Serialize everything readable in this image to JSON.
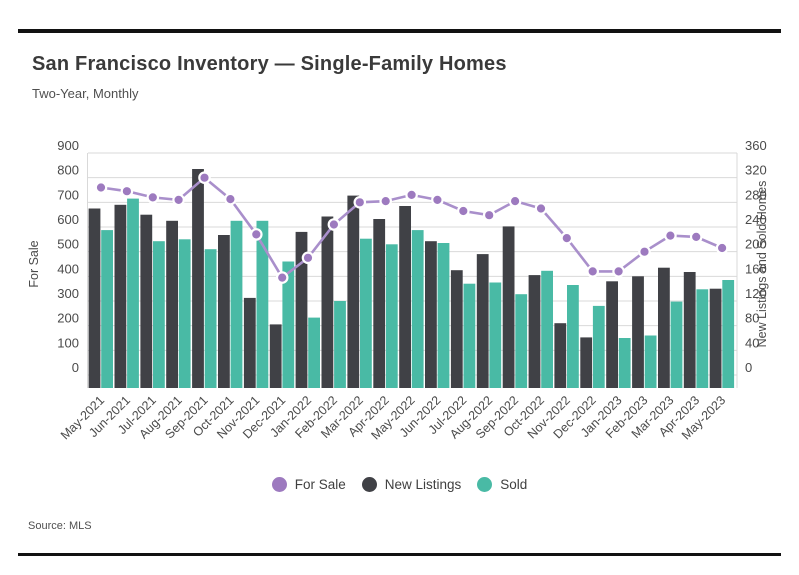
{
  "page": {
    "title": "San Francisco Inventory — Single-Family Homes",
    "subtitle": "Two-Year, Monthly",
    "source": "Source: MLS"
  },
  "colors": {
    "for_sale_dot": "#9d7abf",
    "for_sale_line": "#a98fcb",
    "new_listings": "#404146",
    "sold": "#49baa5",
    "gridline": "#d9d9d9",
    "axis_text": "#4a4a4a",
    "rule": "#121212"
  },
  "chart_data": {
    "type": "bar+line",
    "categories": [
      "May-2021",
      "Jun-2021",
      "Jul-2021",
      "Aug-2021",
      "Sep-2021",
      "Oct-2021",
      "Nov-2021",
      "Dec-2021",
      "Jan-2022",
      "Feb-2022",
      "Mar-2022",
      "Apr-2022",
      "May-2022",
      "Jun-2022",
      "Jul-2022",
      "Aug-2022",
      "Sep-2022",
      "Oct-2022",
      "Nov-2022",
      "Dec-2022",
      "Jan-2023",
      "Feb-2023",
      "Mar-2023",
      "Apr-2023",
      "May-2023"
    ],
    "series": [
      {
        "name": "For Sale",
        "kind": "line",
        "axis": "left",
        "values": [
          760,
          745,
          720,
          710,
          800,
          713,
          570,
          395,
          475,
          610,
          700,
          705,
          730,
          710,
          665,
          648,
          705,
          675,
          555,
          420,
          420,
          500,
          565,
          560,
          515
        ]
      },
      {
        "name": "New Listings",
        "kind": "bar",
        "axis": "right",
        "values": [
          270,
          276,
          260,
          250,
          334,
          227,
          125,
          82,
          232,
          257,
          291,
          253,
          274,
          217,
          170,
          196,
          241,
          162,
          84,
          61,
          152,
          160,
          174,
          167,
          140
        ]
      },
      {
        "name": "Sold",
        "kind": "bar",
        "axis": "right",
        "values": [
          235,
          286,
          217,
          220,
          204,
          250,
          250,
          184,
          93,
          120,
          221,
          212,
          235,
          214,
          148,
          150,
          131,
          169,
          146,
          112,
          60,
          64,
          119,
          139,
          154
        ]
      }
    ],
    "left_axis": {
      "label": "For Sale",
      "min": 0,
      "max": 900,
      "step": 100
    },
    "right_axis": {
      "label": "New Listings and Sold Homes",
      "min": 0,
      "max": 360,
      "step": 40
    },
    "legend_position": "bottom",
    "grid": true
  }
}
